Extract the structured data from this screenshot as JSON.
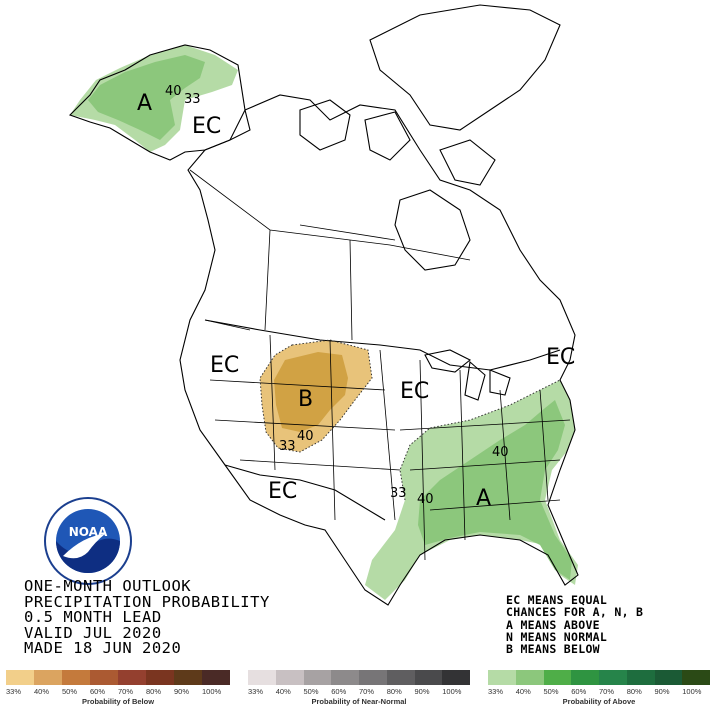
{
  "map": {
    "labels": {
      "ec_alaska": "EC",
      "ec_west": "EC",
      "ec_midwest": "EC",
      "ec_southwest": "EC",
      "ec_northeast": "EC",
      "a_alaska": "A",
      "b_plains": "B",
      "a_southeast": "A"
    },
    "contours": {
      "ak_40": "40",
      "ak_33": "33",
      "plains_40": "40",
      "plains_33": "33",
      "se_40_north": "40",
      "se_33": "33",
      "se_40_west": "40"
    },
    "colors": {
      "above_33": "#b5dba6",
      "above_40": "#8cc77c",
      "below_33": "#e8c37a",
      "below_40": "#d1a244",
      "water": "#ffffff",
      "land_outline": "#000000"
    }
  },
  "logo": {
    "name": "NOAA",
    "ring_text": "NATIONAL OCEANIC AND ATMOSPHERIC ADMINISTRATION · U.S. DEPARTMENT OF COMMERCE"
  },
  "title_lines": [
    "ONE-MONTH OUTLOOK",
    "PRECIPITATION PROBABILITY",
    "0.5 MONTH LEAD",
    "VALID JUL 2020",
    "MADE 18 JUN 2020"
  ],
  "legend_notes": [
    "EC MEANS EQUAL",
    "CHANCES FOR A, N, B",
    "A MEANS ABOVE",
    "N MEANS NORMAL",
    "B MEANS BELOW"
  ],
  "scales": {
    "below": {
      "title": "Probability of Below",
      "ticks": [
        "33%",
        "40%",
        "50%",
        "60%",
        "70%",
        "80%",
        "90%",
        "100%"
      ],
      "colors": [
        "#f2cf8a",
        "#dba460",
        "#c47a3c",
        "#ab5a32",
        "#94402f",
        "#7a3520",
        "#5e3a1a",
        "#4a2a26"
      ]
    },
    "normal": {
      "title": "Probability of Near-Normal",
      "ticks": [
        "33%",
        "40%",
        "50%",
        "60%",
        "70%",
        "80%",
        "90%",
        "100%"
      ],
      "colors": [
        "#e6dfe0",
        "#c8c0c2",
        "#a7a2a3",
        "#8d8a8b",
        "#777577",
        "#5f5e60",
        "#4a4a4c",
        "#333335"
      ]
    },
    "above": {
      "title": "Probability of Above",
      "ticks": [
        "33%",
        "40%",
        "50%",
        "60%",
        "70%",
        "80%",
        "90%",
        "100%"
      ],
      "colors": [
        "#b5dba6",
        "#8cc77c",
        "#4fae48",
        "#2f9441",
        "#26844a",
        "#1e6d3e",
        "#1b5a35",
        "#2b4a16"
      ]
    }
  }
}
